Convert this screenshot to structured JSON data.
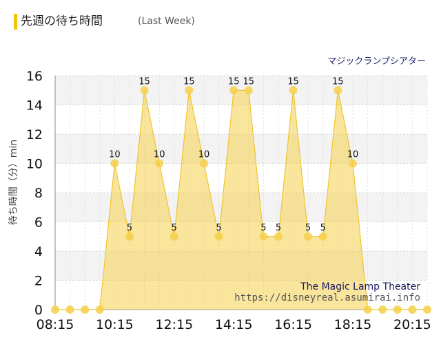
{
  "header": {
    "title": "先週の待ち時間",
    "subtitle": "(Last Week)",
    "accent_color": "#f5c400"
  },
  "chart_data": {
    "type": "area",
    "title": "",
    "series_label": "マジックランプシアター",
    "ylabel": "待ち時間（分）min",
    "ylim": [
      0,
      16
    ],
    "yticks": [
      0,
      2,
      4,
      6,
      8,
      10,
      12,
      14,
      16
    ],
    "xtick_labels": [
      "08:15",
      "10:15",
      "12:15",
      "14:15",
      "16:15",
      "18:15",
      "20:15"
    ],
    "x": [
      "08:15",
      "08:45",
      "09:15",
      "09:45",
      "10:15",
      "10:45",
      "11:15",
      "11:45",
      "12:15",
      "12:45",
      "13:15",
      "13:45",
      "14:15",
      "14:45",
      "15:15",
      "15:45",
      "16:15",
      "16:45",
      "17:15",
      "17:45",
      "18:15",
      "18:45",
      "19:15",
      "19:45",
      "20:15",
      "20:45"
    ],
    "values": [
      0,
      0,
      0,
      0,
      10,
      5,
      15,
      10,
      5,
      15,
      10,
      5,
      15,
      15,
      5,
      5,
      15,
      5,
      5,
      15,
      10,
      0,
      0,
      0,
      0,
      0
    ],
    "series": [
      {
        "name": "マジックランプシアター",
        "color": "#f5d04a"
      }
    ],
    "grid": true,
    "watermark": {
      "line1": "The Magic Lamp Theater",
      "line2": "https://disneyreal.asumirai.info"
    }
  }
}
